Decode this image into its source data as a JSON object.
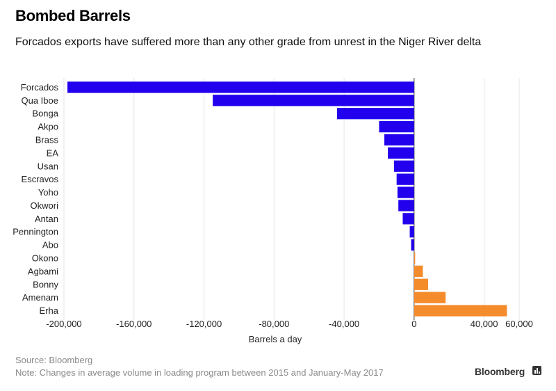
{
  "header": {
    "title": "Bombed Barrels",
    "subtitle": "Forcados exports have suffered more than any other grade from unrest in the Niger River delta"
  },
  "footer": {
    "source": "Source: Bloomberg",
    "note": "Note: Changes in average volume in loading program between 2015 and January-May 2017",
    "brand": "Bloomberg",
    "brand_icon": "bloomberg-chart-icon"
  },
  "colors": {
    "negative": "#2200ee",
    "positive": "#f58c2c",
    "grid": "#e6e6e6",
    "zero_line": "#333333",
    "text": "#222222"
  },
  "chart_data": {
    "type": "bar",
    "orientation": "horizontal",
    "title": "Bombed Barrels",
    "xlabel": "Barrels a day",
    "ylabel": "",
    "xlim": [
      -200000,
      60000
    ],
    "x_ticks": [
      -200000,
      -160000,
      -120000,
      -80000,
      -40000,
      0,
      40000,
      60000
    ],
    "x_tick_labels": [
      "-200,000",
      "-160,000",
      "-120,000",
      "-80,000",
      "-40,000",
      "0",
      "40,000",
      "60,000"
    ],
    "grid": true,
    "categories": [
      "Forcados",
      "Qua Iboe",
      "Bonga",
      "Akpo",
      "Brass",
      "EA",
      "Usan",
      "Escravos",
      "Yoho",
      "Okwori",
      "Antan",
      "Pennington",
      "Abo",
      "Okono",
      "Agbami",
      "Bonny",
      "Amenam",
      "Erha"
    ],
    "values": [
      -198000,
      -115000,
      -44000,
      -20000,
      -17000,
      -15000,
      -11500,
      -10000,
      -9500,
      -9000,
      -6500,
      -2500,
      -1700,
      500,
      5000,
      8000,
      18000,
      53000
    ]
  }
}
